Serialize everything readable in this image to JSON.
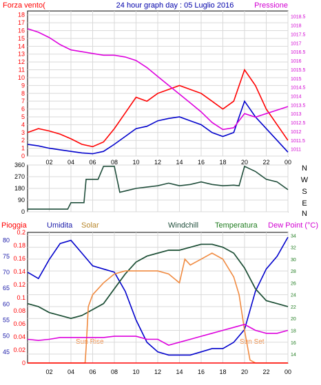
{
  "title": "24 hour graph day : 05 Luglio 2016",
  "hour_ticks": [
    "02",
    "04",
    "06",
    "08",
    "10",
    "12",
    "14",
    "16",
    "18",
    "20",
    "22",
    "00"
  ],
  "colors": {
    "frame": "#000000",
    "grid": "#d9d9d9",
    "left_axis": "#1a1aa8",
    "red_axis": "#ff0000",
    "magenta_axis": "#d200d2",
    "dark_green": "#1f4d3a",
    "green": "#1e7b1e",
    "orange": "#f08a40",
    "title": "#0000aa"
  },
  "chart_data": [
    {
      "type": "line",
      "panel": "wind_pressure",
      "labels": {
        "left": "Forza vento(",
        "right": "Pressione"
      },
      "left_axis": {
        "ticks": [
          "0",
          "1",
          "2",
          "3",
          "4",
          "5",
          "6",
          "7",
          "8",
          "9",
          "10",
          "11",
          "12",
          "13",
          "14",
          "15",
          "16",
          "17",
          "18"
        ],
        "ylim": [
          0,
          18.5
        ]
      },
      "right_axis": {
        "ticks": [
          "1011",
          "1011.5",
          "1012",
          "1012.5",
          "1013",
          "1013.5",
          "1014",
          "1014.5",
          "1015",
          "1015.5",
          "1016",
          "1016.5",
          "1017",
          "1017.5",
          "1018",
          "1018.5"
        ],
        "ylim": [
          1010.6,
          1018.8
        ]
      },
      "series": [
        {
          "key": "gust",
          "color": "#ff0000",
          "axis": "left",
          "x": [
            0,
            1,
            2,
            3,
            4,
            5,
            6,
            7,
            8,
            9,
            10,
            11,
            12,
            13,
            14,
            15,
            16,
            17,
            18,
            19,
            20,
            21,
            22,
            23,
            24
          ],
          "y": [
            3,
            3.5,
            3.2,
            2.8,
            2.2,
            1.5,
            1.2,
            1.8,
            3.5,
            5.5,
            7.5,
            7,
            8,
            8.5,
            9,
            8.5,
            8,
            7,
            6,
            7,
            11,
            9,
            6,
            4,
            2
          ]
        },
        {
          "key": "wind",
          "color": "#0000cc",
          "axis": "left",
          "x": [
            0,
            1,
            2,
            3,
            4,
            5,
            6,
            7,
            8,
            9,
            10,
            11,
            12,
            13,
            14,
            15,
            16,
            17,
            18,
            19,
            20,
            21,
            22,
            23,
            24
          ],
          "y": [
            1.5,
            1.3,
            1,
            0.8,
            0.6,
            0.4,
            0.3,
            0.6,
            1.5,
            2.5,
            3.5,
            3.8,
            4.5,
            4.8,
            5,
            4.5,
            4,
            3,
            2.5,
            3,
            7,
            5,
            3.5,
            2,
            0.5
          ]
        },
        {
          "key": "pressure",
          "color": "#dd00dd",
          "axis": "right",
          "x": [
            0,
            1,
            2,
            3,
            4,
            5,
            6,
            7,
            8,
            9,
            10,
            11,
            12,
            13,
            14,
            15,
            16,
            17,
            18,
            19,
            20,
            21,
            22,
            23,
            24
          ],
          "y": [
            1017.8,
            1017.6,
            1017.3,
            1016.9,
            1016.6,
            1016.5,
            1016.4,
            1016.3,
            1016.3,
            1016.2,
            1016,
            1015.6,
            1015.1,
            1014.6,
            1014.1,
            1013.6,
            1013.1,
            1012.5,
            1012.1,
            1012.2,
            1013,
            1012.8,
            1013,
            1013.2,
            1013.4
          ]
        }
      ]
    },
    {
      "type": "line",
      "panel": "direction",
      "left_axis": {
        "ticks": [
          "0",
          "90",
          "180",
          "270",
          "360"
        ],
        "ylim": [
          0,
          360
        ]
      },
      "right_labels": [
        "N",
        "W",
        "S",
        "E",
        "N"
      ],
      "series": [
        {
          "key": "direction",
          "color": "#1f4d3a",
          "axis": "left",
          "x": [
            0,
            1,
            2,
            3,
            3.7,
            4,
            5,
            5.2,
            5.4,
            6.5,
            7,
            7.9,
            8,
            8.5,
            9,
            10,
            11,
            12,
            13,
            14,
            15,
            16,
            17,
            18,
            19,
            19.5,
            20,
            20.5,
            21,
            22,
            23,
            24
          ],
          "y": [
            20,
            20,
            20,
            20,
            20,
            70,
            70,
            70,
            250,
            250,
            350,
            350,
            350,
            150,
            160,
            180,
            190,
            200,
            220,
            200,
            210,
            230,
            210,
            200,
            205,
            200,
            350,
            330,
            310,
            250,
            230,
            170
          ]
        }
      ]
    },
    {
      "type": "line",
      "panel": "climate",
      "labels": {
        "pioggia": "Pioggia",
        "umidita": "Umidita",
        "solar": "Solar",
        "windchill": "Windchill",
        "temperatura": "Temperatura",
        "dew": "Dew Point (°C)"
      },
      "hum_axis": {
        "ticks": [
          "45",
          "50",
          "55",
          "60",
          "65",
          "70",
          "75",
          "80"
        ],
        "ylim": [
          41.5,
          82.5
        ]
      },
      "rain_axis": {
        "ticks": [
          "0",
          "0.02",
          "0.04",
          "0.06",
          "0.08",
          "0.1",
          "0.12",
          "0.14",
          "0.16",
          "0.18",
          "0.2"
        ],
        "ylim": [
          0,
          0.2
        ]
      },
      "temp_axis": {
        "ticks": [
          "14",
          "16",
          "18",
          "20",
          "22",
          "24",
          "26",
          "28",
          "30",
          "32",
          "34"
        ],
        "ylim": [
          12.5,
          34.5
        ]
      },
      "annotations": [
        "Sun Rise",
        "Sun Set"
      ],
      "series": [
        {
          "key": "humidity",
          "color": "#0000cc",
          "axis": "hum",
          "x": [
            0,
            1,
            2,
            3,
            4,
            5,
            6,
            7,
            8,
            9,
            10,
            11,
            12,
            13,
            14,
            15,
            16,
            17,
            18,
            19,
            20,
            21,
            22,
            23,
            24
          ],
          "y": [
            70,
            68,
            74,
            79,
            80,
            76,
            72,
            71,
            70,
            64,
            55,
            48,
            45,
            44,
            44,
            44,
            45,
            46,
            46,
            48,
            52,
            64,
            71,
            75,
            81
          ]
        },
        {
          "key": "temperature",
          "color": "#1e7b1e",
          "axis": "temp",
          "x": [
            0,
            1,
            2,
            3,
            4,
            5,
            6,
            7,
            8,
            9,
            10,
            11,
            12,
            13,
            14,
            15,
            16,
            17,
            18,
            19,
            20,
            21,
            22,
            23,
            24
          ],
          "y": [
            22.5,
            22,
            21,
            20.5,
            20,
            20.5,
            21.5,
            22.5,
            25,
            27.5,
            29.5,
            30.5,
            31,
            31.5,
            31.5,
            32,
            32.5,
            32.5,
            32,
            31,
            28.5,
            25,
            23,
            22.5,
            22
          ]
        },
        {
          "key": "windchill",
          "color": "#1f4d3a",
          "axis": "temp",
          "x": [
            0,
            1,
            2,
            3,
            4,
            5,
            6,
            7,
            8,
            9,
            10,
            11,
            12,
            13,
            14,
            15,
            16,
            17,
            18,
            19,
            20,
            21,
            22,
            23,
            24
          ],
          "y": [
            22.5,
            22,
            21,
            20.5,
            20,
            20.5,
            21.5,
            22.5,
            25,
            27.5,
            29.5,
            30.5,
            31,
            31.5,
            31.5,
            32,
            32.5,
            32.5,
            32,
            31,
            28.5,
            25,
            23,
            22.5,
            22
          ]
        },
        {
          "key": "solar",
          "color": "#f08a40",
          "axis": "temp",
          "x": [
            0,
            5.3,
            5.4,
            5.6,
            6,
            7,
            8,
            9,
            10,
            11,
            12,
            13,
            14,
            14.5,
            15,
            16,
            17,
            18,
            19,
            19.5,
            20,
            20.5,
            21,
            22,
            24
          ],
          "y": [
            12.5,
            12.5,
            15,
            22,
            24,
            26,
            27.5,
            28,
            28,
            28,
            28,
            27.5,
            26,
            30,
            29,
            30,
            31,
            30,
            27,
            24,
            18,
            13,
            12.5,
            12.5,
            12.5
          ]
        },
        {
          "key": "dew",
          "color": "#dd00dd",
          "axis": "temp",
          "x": [
            0,
            1,
            2,
            3,
            4,
            5,
            6,
            7,
            8,
            9,
            10,
            11,
            12,
            13,
            14,
            15,
            16,
            17,
            18,
            19,
            20,
            21,
            22,
            23,
            24
          ],
          "y": [
            16.5,
            16.3,
            16.5,
            16.8,
            16.8,
            16.8,
            16.8,
            16.8,
            17,
            17,
            17,
            16.5,
            16.5,
            15.5,
            16,
            16.5,
            17,
            17.5,
            18,
            18.5,
            19,
            18,
            17.5,
            17.5,
            18
          ]
        },
        {
          "key": "rain",
          "color": "#ff0000",
          "axis": "rain",
          "x": [
            0,
            24
          ],
          "y": [
            0,
            0
          ]
        }
      ]
    }
  ]
}
